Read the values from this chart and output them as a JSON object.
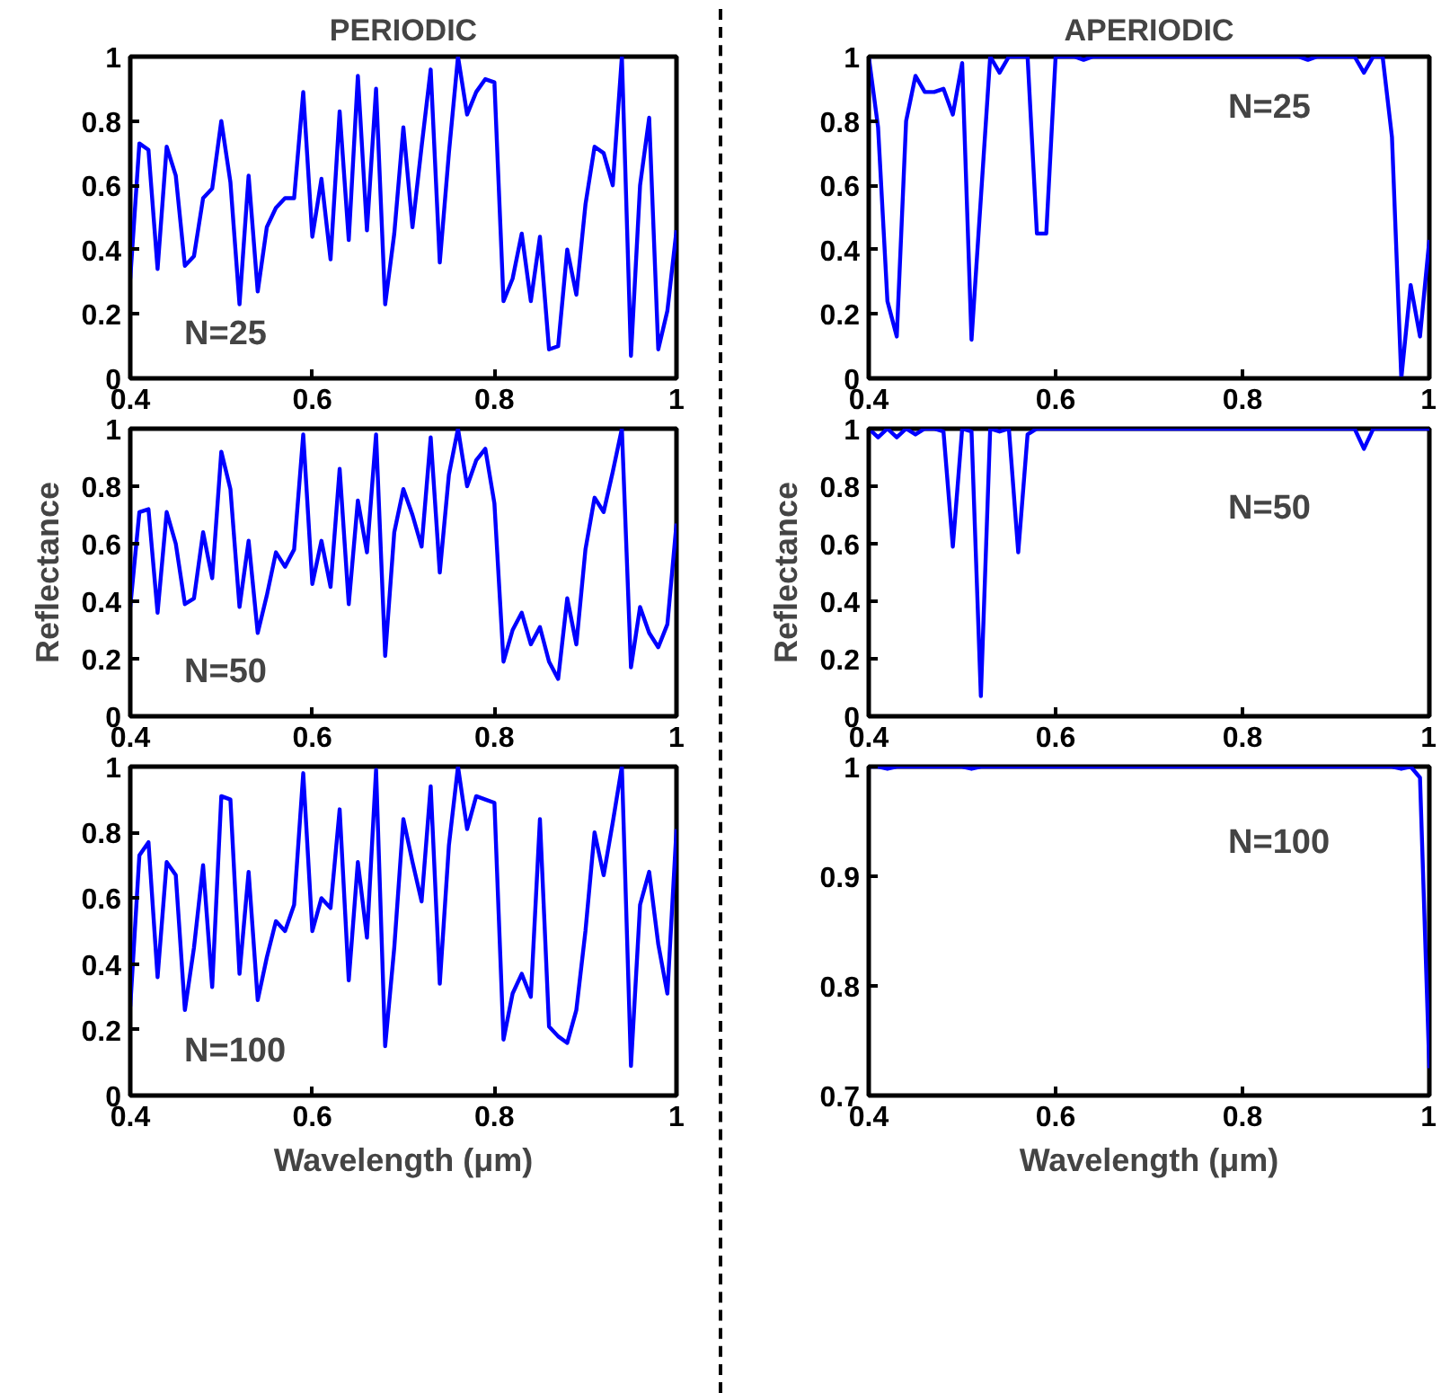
{
  "chart_data": [
    {
      "type": "line",
      "title": "PERIODIC",
      "annotations": [
        "N=25"
      ],
      "xlim": [
        0.4,
        1
      ],
      "xticks": [
        0.4,
        0.6,
        0.8,
        1
      ],
      "ylim": [
        0,
        1
      ],
      "yticks": [
        0,
        0.2,
        0.4,
        0.6,
        0.8,
        1
      ],
      "x": [
        0.4,
        0.41,
        0.42,
        0.43,
        0.44,
        0.45,
        0.46,
        0.47,
        0.48,
        0.49,
        0.5,
        0.51,
        0.52,
        0.53,
        0.54,
        0.55,
        0.56,
        0.57,
        0.58,
        0.59,
        0.6,
        0.61,
        0.62,
        0.63,
        0.64,
        0.65,
        0.66,
        0.67,
        0.68,
        0.69,
        0.7,
        0.71,
        0.72,
        0.73,
        0.74,
        0.75,
        0.76,
        0.77,
        0.78,
        0.79,
        0.8,
        0.81,
        0.82,
        0.83,
        0.84,
        0.85,
        0.86,
        0.87,
        0.88,
        0.89,
        0.9,
        0.91,
        0.92,
        0.93,
        0.94,
        0.95,
        0.96,
        0.97,
        0.98,
        0.99,
        1.0
      ],
      "series": [
        {
          "color": "#0000ff",
          "values": [
            0.31,
            0.73,
            0.71,
            0.34,
            0.72,
            0.63,
            0.35,
            0.38,
            0.56,
            0.59,
            0.8,
            0.61,
            0.23,
            0.63,
            0.27,
            0.47,
            0.53,
            0.56,
            0.56,
            0.89,
            0.44,
            0.62,
            0.37,
            0.83,
            0.43,
            0.94,
            0.46,
            0.9,
            0.23,
            0.45,
            0.78,
            0.47,
            0.72,
            0.96,
            0.36,
            0.7,
            1.0,
            0.82,
            0.89,
            0.93,
            0.92,
            0.24,
            0.31,
            0.45,
            0.24,
            0.44,
            0.09,
            0.1,
            0.4,
            0.26,
            0.54,
            0.72,
            0.7,
            0.6,
            1.0,
            0.07,
            0.6,
            0.81,
            0.09,
            0.21,
            0.46
          ]
        }
      ]
    },
    {
      "type": "line",
      "title": "APERIODIC",
      "annotations": [
        "N=25"
      ],
      "xlim": [
        0.4,
        1
      ],
      "xticks": [
        0.4,
        0.6,
        0.8,
        1
      ],
      "ylim": [
        0,
        1
      ],
      "yticks": [
        0,
        0.2,
        0.4,
        0.6,
        0.8,
        1
      ],
      "x": [
        0.4,
        0.41,
        0.42,
        0.43,
        0.44,
        0.45,
        0.46,
        0.47,
        0.48,
        0.49,
        0.5,
        0.51,
        0.52,
        0.53,
        0.54,
        0.55,
        0.56,
        0.57,
        0.58,
        0.59,
        0.6,
        0.61,
        0.62,
        0.63,
        0.64,
        0.65,
        0.66,
        0.67,
        0.68,
        0.69,
        0.7,
        0.71,
        0.72,
        0.73,
        0.74,
        0.75,
        0.76,
        0.77,
        0.78,
        0.79,
        0.8,
        0.81,
        0.82,
        0.83,
        0.84,
        0.85,
        0.86,
        0.87,
        0.88,
        0.89,
        0.9,
        0.91,
        0.92,
        0.93,
        0.94,
        0.95,
        0.96,
        0.97,
        0.98,
        0.99,
        1.0
      ],
      "series": [
        {
          "color": "#0000ff",
          "values": [
            1.0,
            0.78,
            0.24,
            0.13,
            0.8,
            0.94,
            0.89,
            0.89,
            0.9,
            0.82,
            0.98,
            0.12,
            0.56,
            1.0,
            0.95,
            1.0,
            1.0,
            1.0,
            0.45,
            0.45,
            1.0,
            1.0,
            1.0,
            0.99,
            1.0,
            1.0,
            1.0,
            1.0,
            1.0,
            1.0,
            1.0,
            1.0,
            1.0,
            1.0,
            1.0,
            1.0,
            1.0,
            1.0,
            1.0,
            1.0,
            1.0,
            1.0,
            1.0,
            1.0,
            1.0,
            1.0,
            1.0,
            0.99,
            1.0,
            1.0,
            1.0,
            1.0,
            1.0,
            0.95,
            1.0,
            1.0,
            0.75,
            0.0,
            0.29,
            0.13,
            0.43
          ]
        }
      ]
    },
    {
      "type": "line",
      "ylabel": "Reflectance",
      "annotations": [
        "N=50"
      ],
      "xlim": [
        0.4,
        1
      ],
      "xticks": [
        0.4,
        0.6,
        0.8,
        1
      ],
      "ylim": [
        0,
        1
      ],
      "yticks": [
        0,
        0.2,
        0.4,
        0.6,
        0.8,
        1
      ],
      "x": [
        0.4,
        0.41,
        0.42,
        0.43,
        0.44,
        0.45,
        0.46,
        0.47,
        0.48,
        0.49,
        0.5,
        0.51,
        0.52,
        0.53,
        0.54,
        0.55,
        0.56,
        0.57,
        0.58,
        0.59,
        0.6,
        0.61,
        0.62,
        0.63,
        0.64,
        0.65,
        0.66,
        0.67,
        0.68,
        0.69,
        0.7,
        0.71,
        0.72,
        0.73,
        0.74,
        0.75,
        0.76,
        0.77,
        0.78,
        0.79,
        0.8,
        0.81,
        0.82,
        0.83,
        0.84,
        0.85,
        0.86,
        0.87,
        0.88,
        0.89,
        0.9,
        0.91,
        0.92,
        0.93,
        0.94,
        0.95,
        0.96,
        0.97,
        0.98,
        0.99,
        1.0
      ],
      "series": [
        {
          "color": "#0000ff",
          "values": [
            0.38,
            0.71,
            0.72,
            0.36,
            0.71,
            0.6,
            0.39,
            0.41,
            0.64,
            0.48,
            0.92,
            0.79,
            0.38,
            0.61,
            0.29,
            0.42,
            0.57,
            0.52,
            0.58,
            0.98,
            0.46,
            0.61,
            0.45,
            0.86,
            0.39,
            0.75,
            0.57,
            0.98,
            0.21,
            0.64,
            0.79,
            0.7,
            0.59,
            0.97,
            0.5,
            0.84,
            1.0,
            0.8,
            0.89,
            0.93,
            0.74,
            0.19,
            0.3,
            0.36,
            0.25,
            0.31,
            0.19,
            0.13,
            0.41,
            0.25,
            0.58,
            0.76,
            0.71,
            0.85,
            1.0,
            0.17,
            0.38,
            0.29,
            0.24,
            0.32,
            0.67
          ]
        }
      ]
    },
    {
      "type": "line",
      "ylabel": "Reflectance",
      "annotations": [
        "N=50"
      ],
      "xlim": [
        0.4,
        1
      ],
      "xticks": [
        0.4,
        0.6,
        0.8,
        1
      ],
      "ylim": [
        0,
        1
      ],
      "yticks": [
        0,
        0.2,
        0.4,
        0.6,
        0.8,
        1
      ],
      "x": [
        0.4,
        0.41,
        0.42,
        0.43,
        0.44,
        0.45,
        0.46,
        0.47,
        0.48,
        0.49,
        0.5,
        0.51,
        0.52,
        0.53,
        0.54,
        0.55,
        0.56,
        0.57,
        0.58,
        0.59,
        0.6,
        0.61,
        0.62,
        0.63,
        0.64,
        0.65,
        0.66,
        0.67,
        0.68,
        0.69,
        0.7,
        0.71,
        0.72,
        0.73,
        0.74,
        0.75,
        0.76,
        0.77,
        0.78,
        0.79,
        0.8,
        0.81,
        0.82,
        0.83,
        0.84,
        0.85,
        0.86,
        0.87,
        0.88,
        0.89,
        0.9,
        0.91,
        0.92,
        0.93,
        0.94,
        0.95,
        0.96,
        0.97,
        0.98,
        0.99,
        1.0
      ],
      "series": [
        {
          "color": "#0000ff",
          "values": [
            1.0,
            0.97,
            1.0,
            0.97,
            1.0,
            0.98,
            1.0,
            1.0,
            0.99,
            0.59,
            1.0,
            0.99,
            0.07,
            1.0,
            0.99,
            1.0,
            0.57,
            0.98,
            1.0,
            1.0,
            1.0,
            1.0,
            1.0,
            1.0,
            1.0,
            1.0,
            1.0,
            1.0,
            1.0,
            1.0,
            1.0,
            1.0,
            1.0,
            1.0,
            1.0,
            1.0,
            1.0,
            1.0,
            1.0,
            1.0,
            1.0,
            1.0,
            1.0,
            1.0,
            1.0,
            1.0,
            1.0,
            1.0,
            1.0,
            1.0,
            1.0,
            1.0,
            1.0,
            0.93,
            1.0,
            1.0,
            1.0,
            1.0,
            1.0,
            1.0,
            1.0
          ]
        }
      ]
    },
    {
      "type": "line",
      "xlabel": "Wavelength (μm)",
      "annotations": [
        "N=100"
      ],
      "xlim": [
        0.4,
        1
      ],
      "xticks": [
        0.4,
        0.6,
        0.8,
        1
      ],
      "ylim": [
        0,
        1
      ],
      "yticks": [
        0,
        0.2,
        0.4,
        0.6,
        0.8,
        1
      ],
      "x": [
        0.4,
        0.41,
        0.42,
        0.43,
        0.44,
        0.45,
        0.46,
        0.47,
        0.48,
        0.49,
        0.5,
        0.51,
        0.52,
        0.53,
        0.54,
        0.55,
        0.56,
        0.57,
        0.58,
        0.59,
        0.6,
        0.61,
        0.62,
        0.63,
        0.64,
        0.65,
        0.66,
        0.67,
        0.68,
        0.69,
        0.7,
        0.71,
        0.72,
        0.73,
        0.74,
        0.75,
        0.76,
        0.77,
        0.78,
        0.79,
        0.8,
        0.81,
        0.82,
        0.83,
        0.84,
        0.85,
        0.86,
        0.87,
        0.88,
        0.89,
        0.9,
        0.91,
        0.92,
        0.93,
        0.94,
        0.95,
        0.96,
        0.97,
        0.98,
        0.99,
        1.0
      ],
      "series": [
        {
          "color": "#0000ff",
          "values": [
            0.27,
            0.73,
            0.77,
            0.36,
            0.71,
            0.67,
            0.26,
            0.45,
            0.7,
            0.33,
            0.91,
            0.9,
            0.37,
            0.68,
            0.29,
            0.42,
            0.53,
            0.5,
            0.58,
            0.98,
            0.5,
            0.6,
            0.57,
            0.87,
            0.35,
            0.71,
            0.48,
            0.99,
            0.15,
            0.45,
            0.84,
            0.71,
            0.59,
            0.94,
            0.34,
            0.76,
            1.0,
            0.81,
            0.91,
            0.9,
            0.89,
            0.17,
            0.31,
            0.37,
            0.3,
            0.84,
            0.21,
            0.18,
            0.16,
            0.26,
            0.5,
            0.8,
            0.67,
            0.83,
            1.0,
            0.09,
            0.58,
            0.68,
            0.46,
            0.31,
            0.81
          ]
        }
      ]
    },
    {
      "type": "line",
      "xlabel": "Wavelength (μm)",
      "annotations": [
        "N=100"
      ],
      "xlim": [
        0.4,
        1
      ],
      "xticks": [
        0.4,
        0.6,
        0.8,
        1
      ],
      "ylim": [
        0.7,
        1
      ],
      "yticks": [
        0.7,
        0.8,
        0.9,
        1
      ],
      "x": [
        0.4,
        0.41,
        0.42,
        0.43,
        0.44,
        0.45,
        0.46,
        0.47,
        0.48,
        0.49,
        0.5,
        0.51,
        0.52,
        0.53,
        0.54,
        0.55,
        0.56,
        0.57,
        0.58,
        0.59,
        0.6,
        0.61,
        0.62,
        0.63,
        0.64,
        0.65,
        0.66,
        0.67,
        0.68,
        0.69,
        0.7,
        0.71,
        0.72,
        0.73,
        0.74,
        0.75,
        0.76,
        0.77,
        0.78,
        0.79,
        0.8,
        0.81,
        0.82,
        0.83,
        0.84,
        0.85,
        0.86,
        0.87,
        0.88,
        0.89,
        0.9,
        0.91,
        0.92,
        0.93,
        0.94,
        0.95,
        0.96,
        0.97,
        0.98,
        0.99,
        1.0
      ],
      "series": [
        {
          "color": "#0000ff",
          "values": [
            1.0,
            1.0,
            0.998,
            1.0,
            1.0,
            1.0,
            1.0,
            1.0,
            1.0,
            1.0,
            1.0,
            0.998,
            1.0,
            1.0,
            1.0,
            1.0,
            1.0,
            1.0,
            1.0,
            1.0,
            1.0,
            1.0,
            1.0,
            1.0,
            1.0,
            1.0,
            1.0,
            1.0,
            1.0,
            1.0,
            1.0,
            1.0,
            1.0,
            1.0,
            1.0,
            1.0,
            1.0,
            1.0,
            1.0,
            1.0,
            1.0,
            1.0,
            1.0,
            1.0,
            1.0,
            1.0,
            1.0,
            1.0,
            1.0,
            1.0,
            1.0,
            1.0,
            1.0,
            1.0,
            1.0,
            1.0,
            1.0,
            0.998,
            1.0,
            0.99,
            0.725
          ]
        }
      ]
    }
  ]
}
